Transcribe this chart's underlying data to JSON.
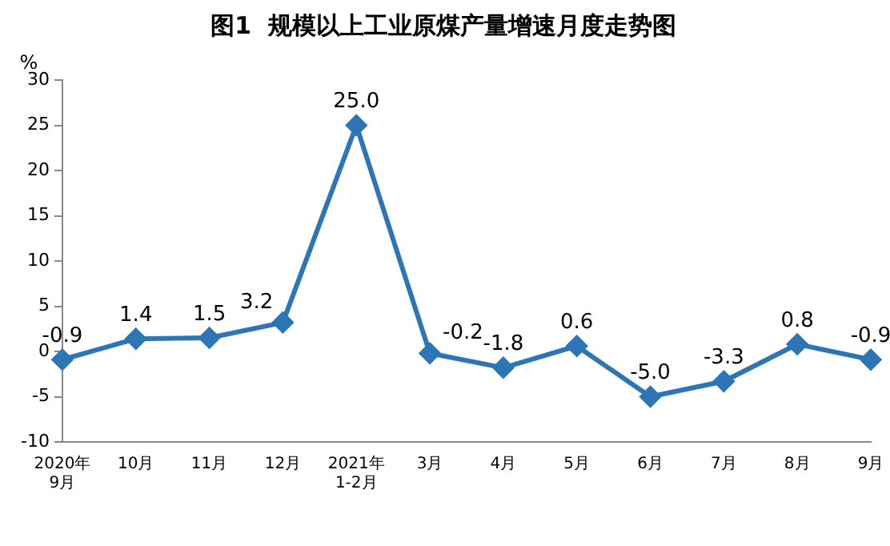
{
  "chart_data": {
    "type": "line",
    "title": "图1  规模以上工业原煤产量增速月度走势图",
    "ylabel": "%",
    "categories": [
      "2020年\n9月",
      "10月",
      "11月",
      "12月",
      "2021年\n1-2月",
      "3月",
      "4月",
      "5月",
      "6月",
      "7月",
      "8月",
      "9月"
    ],
    "series": [
      {
        "color": "#2e75b6",
        "values": [
          -0.9,
          1.4,
          1.5,
          3.2,
          25.0,
          -0.2,
          -1.8,
          0.6,
          -5.0,
          -3.3,
          0.8,
          -0.9
        ],
        "value_labels": [
          "-0.9",
          "1.4",
          "1.5",
          "3.2",
          "25.0",
          "-0.2",
          "-1.8",
          "0.6",
          "-5.0",
          "-3.3",
          "0.8",
          "-0.9"
        ]
      }
    ],
    "ylim": [
      -10,
      30
    ],
    "yticks": [
      -10,
      -5,
      0,
      5,
      10,
      15,
      20,
      25,
      30
    ],
    "grid": false,
    "legend": false,
    "marker": "diamond",
    "line_style": "solid"
  }
}
